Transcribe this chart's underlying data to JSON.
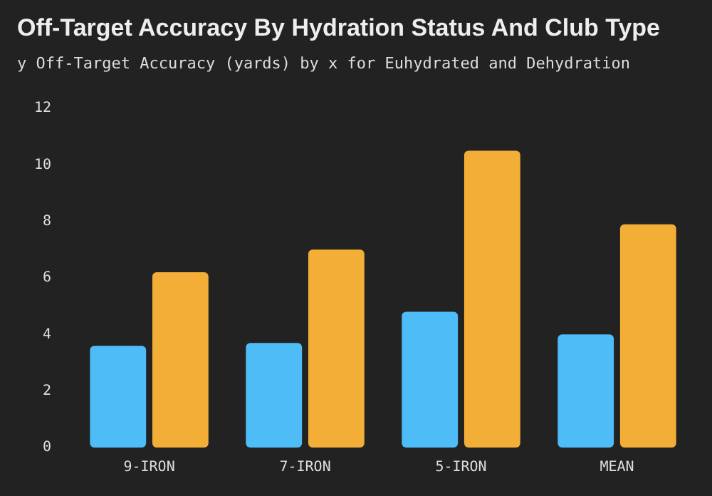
{
  "chart_data": {
    "type": "bar",
    "title": "Off-Target Accuracy By Hydration Status And Club Type",
    "subtitle": "y Off-Target Accuracy (yards) by x for Euhydrated and Dehydration",
    "categories": [
      "9-IRON",
      "7-IRON",
      "5-IRON",
      "MEAN"
    ],
    "series": [
      {
        "color": "#4dbcf7",
        "values": [
          3.6,
          3.7,
          4.8,
          4.0
        ]
      },
      {
        "color": "#f2ae36",
        "values": [
          6.2,
          7.0,
          10.5,
          7.9
        ]
      }
    ],
    "ylim": [
      0,
      12
    ],
    "yticks": [
      0,
      2,
      4,
      6,
      8,
      10,
      12
    ],
    "grid": false,
    "legend": false
  }
}
